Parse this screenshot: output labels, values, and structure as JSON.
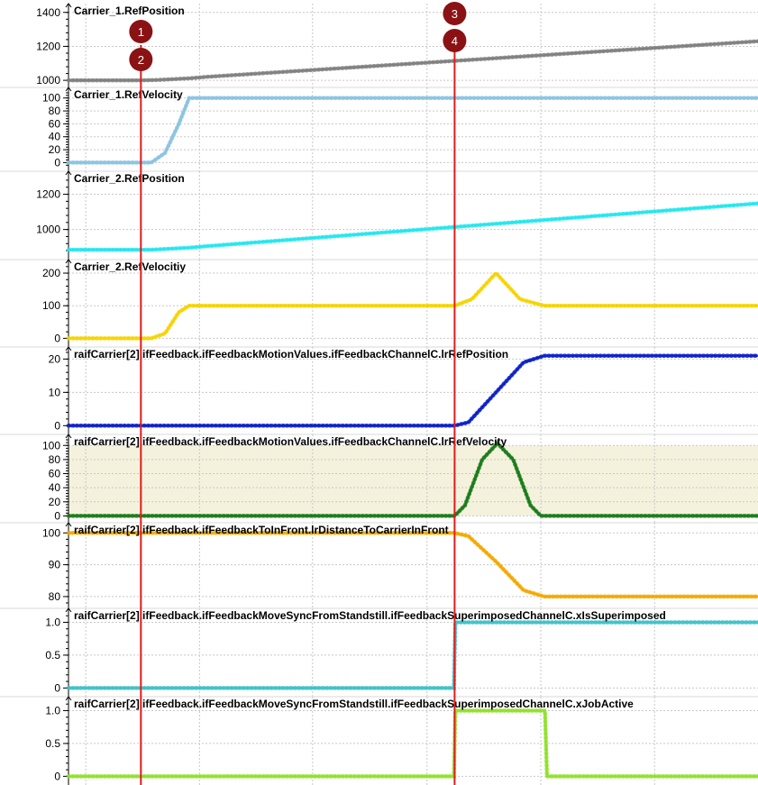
{
  "colors": {
    "grid": "#c8c8c8",
    "axis": "#000000",
    "cursor": "#e21b1b",
    "marker": "#8b1214",
    "marker_text": "#ffffff",
    "band_fill": "#f4f2dc"
  },
  "x_range": [
    0,
    1000
  ],
  "x_grid": [
    25,
    190,
    354,
    520,
    685,
    850
  ],
  "cursors": [
    {
      "x": 105,
      "labels": [
        "1",
        "2"
      ]
    },
    {
      "x": 560,
      "labels": [
        "3",
        "4"
      ]
    }
  ],
  "chart_data": [
    {
      "type": "line",
      "title": "Carrier_1.RefPosition",
      "ylim": [
        990,
        1420
      ],
      "yticks": [
        1000,
        1200,
        1400
      ],
      "color": "#808080",
      "series": [
        {
          "x": [
            0,
            105,
            130,
            176,
            200,
            1000
          ],
          "y": [
            1000,
            1000,
            1002,
            1012,
            1020,
            1230
          ]
        }
      ]
    },
    {
      "type": "line",
      "title": "Carrier_1.RefVelocity",
      "ylim": [
        -5,
        108
      ],
      "yticks": [
        0,
        20,
        40,
        60,
        80,
        100
      ],
      "color": "#89c3e1",
      "series": [
        {
          "x": [
            0,
            120,
            140,
            160,
            175,
            1000
          ],
          "y": [
            0,
            0,
            15,
            60,
            100,
            100
          ]
        }
      ]
    },
    {
      "type": "line",
      "title": "Carrier_2.RefPosition",
      "ylim": [
        860,
        1300
      ],
      "yticks": [
        1000,
        1200
      ],
      "color": "#22e6ee",
      "series": [
        {
          "x": [
            0,
            120,
            176,
            200,
            1000
          ],
          "y": [
            885,
            885,
            897,
            905,
            1148
          ]
        }
      ]
    },
    {
      "type": "line",
      "title": "Carrier_2.RefVelocitiy",
      "ylim": [
        -10,
        225
      ],
      "yticks": [
        0,
        100,
        200
      ],
      "color": "#f5d300",
      "series": [
        {
          "x": [
            0,
            120,
            140,
            160,
            175,
            560,
            585,
            620,
            655,
            690,
            1000
          ],
          "y": [
            0,
            0,
            15,
            80,
            100,
            100,
            120,
            200,
            120,
            100,
            100
          ]
        }
      ]
    },
    {
      "type": "line",
      "title": "raifCarrier[2].ifFeedback.ifFeedbackMotionValues.ifFeedbackChannelC.lrRefPosition",
      "ylim": [
        -1,
        22
      ],
      "yticks": [
        0,
        10,
        20
      ],
      "color": "#0a1ec8",
      "series": [
        {
          "x": [
            0,
            560,
            580,
            620,
            660,
            690,
            1000
          ],
          "y": [
            0,
            0,
            1,
            10,
            19,
            21,
            21
          ]
        }
      ]
    },
    {
      "type": "line",
      "title": "raifCarrier[2].ifFeedback.ifFeedbackMotionValues.ifFeedbackChannelC.lrRefVelocity",
      "ylim": [
        -2,
        108
      ],
      "yticks": [
        0,
        20,
        40,
        60,
        80,
        100
      ],
      "color": "#1a7a1a",
      "band": [
        0,
        100
      ],
      "series": [
        {
          "x": [
            0,
            560,
            575,
            600,
            622,
            645,
            670,
            685,
            1000
          ],
          "y": [
            0,
            0,
            15,
            80,
            103,
            80,
            15,
            0,
            0
          ]
        }
      ]
    },
    {
      "type": "line",
      "title": "raifCarrier[2].ifFeedback.ifFeedbackToInFront.lrDistanceToCarrierInFront",
      "ylim": [
        78,
        101.5
      ],
      "yticks": [
        80,
        90,
        100
      ],
      "color": "#f5a800",
      "series": [
        {
          "x": [
            0,
            560,
            580,
            620,
            660,
            690,
            1000
          ],
          "y": [
            100,
            100,
            99,
            91,
            82,
            80,
            80
          ]
        }
      ]
    },
    {
      "type": "line",
      "title": "raifCarrier[2].ifFeedback.ifFeedbackMoveSyncFromStandstill.ifFeedbackSuperimposedChannelC.xIsSuperimposed",
      "ylim": [
        -0.05,
        1.13
      ],
      "yticks": [
        0,
        0.5,
        1.0
      ],
      "ytick_labels": [
        "0",
        "0.5",
        "1.0"
      ],
      "color": "#40bfc8",
      "series": [
        {
          "x": [
            0,
            559,
            561,
            1000
          ],
          "y": [
            0,
            0,
            1,
            1
          ]
        }
      ]
    },
    {
      "type": "line",
      "title": "raifCarrier[2].ifFeedback.ifFeedbackMoveSyncFromStandstill.ifFeedbackSuperimposedChannelC.xJobActive",
      "ylim": [
        -0.05,
        1.13
      ],
      "yticks": [
        0,
        0.5,
        1.0
      ],
      "ytick_labels": [
        "0",
        "0.5",
        "1.0"
      ],
      "color": "#8fe02a",
      "series": [
        {
          "x": [
            0,
            559,
            561,
            691,
            694,
            1000
          ],
          "y": [
            0,
            0,
            1,
            1,
            0,
            0
          ]
        }
      ]
    }
  ]
}
